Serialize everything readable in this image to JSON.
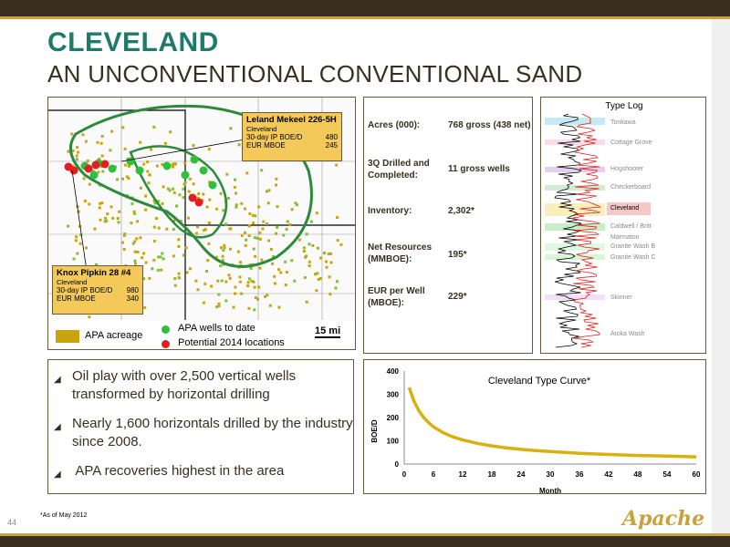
{
  "header": {
    "title": "CLEVELAND",
    "subtitle": "AN UNCONVENTIONAL CONVENTIONAL SAND"
  },
  "colors": {
    "title_teal": "#1f7a6b",
    "brown": "#3a2f1e",
    "gold": "#c9a40e",
    "green_boundary": "#2d8a3a",
    "green_well": "#2fbf3a",
    "red_well": "#e02020"
  },
  "map": {
    "callout_top": {
      "name": "Leland Mekeel 226-5H",
      "sub": "Cleveland",
      "row1_label": "30-day IP BOE/D",
      "row1_value": "480",
      "row2_label": "EUR MBOE",
      "row2_value": "245"
    },
    "callout_bottom": {
      "name": "Knox Pipkin 28 #4",
      "sub": "Cleveland",
      "row1_label": "30-day IP BOE/D",
      "row1_value": "980",
      "row2_label": "EUR MBOE",
      "row2_value": "340"
    },
    "legend": {
      "acreage": "APA acreage",
      "wells": "APA wells to date",
      "potential": "Potential 2014 locations",
      "scale": "15 mi"
    }
  },
  "stats": [
    {
      "label": "Acres (000):",
      "value": "768 gross (438 net)"
    },
    {
      "label": "3Q Drilled and Completed:",
      "value": "11 gross wells"
    },
    {
      "label": "Inventory:",
      "value": "2,302*"
    },
    {
      "label": "Net Resources (MMBOE):",
      "value": "195*"
    },
    {
      "label": "EUR per Well (MBOE):",
      "value": "229*"
    }
  ],
  "type_log": {
    "title": "Type Log",
    "formations": [
      "Tonkawa",
      "Cottage Grove",
      "Hogshooter",
      "Checkerboard",
      "Cleveland",
      "Caldwell / Britt",
      "Marmaton",
      "Granite Wash B",
      "Granite Wash C",
      "Skinner",
      "Atoka Wash"
    ],
    "highlighted": "Cleveland"
  },
  "bullets": [
    "Oil play with over 2,500 vertical wells transformed by horizontal drilling",
    "Nearly 1,600 horizontals drilled by the industry since 2008.",
    " APA recoveries highest in the area"
  ],
  "chart_data": {
    "type": "line",
    "title": "Cleveland Type Curve*",
    "xlabel": "Month",
    "ylabel": "BOE/D",
    "xlim": [
      0,
      60
    ],
    "ylim": [
      0,
      400
    ],
    "x_ticks": [
      "0",
      "6",
      "12",
      "18",
      "24",
      "30",
      "36",
      "42",
      "48",
      "54",
      "60"
    ],
    "y_ticks": [
      "0",
      "100",
      "200",
      "300",
      "400"
    ],
    "series": [
      {
        "color": "#d9b010",
        "x": [
          1,
          2,
          3,
          4,
          5,
          6,
          8,
          10,
          12,
          15,
          18,
          21,
          24,
          27,
          30,
          36,
          42,
          48,
          54,
          60
        ],
        "y": [
          330,
          270,
          230,
          200,
          178,
          160,
          135,
          117,
          104,
          89,
          78,
          70,
          63,
          58,
          54,
          46,
          41,
          37,
          34,
          31
        ]
      }
    ]
  },
  "footer": {
    "footnote": "*As of May 2012",
    "page_number": "44",
    "logo_text": "Apache"
  }
}
